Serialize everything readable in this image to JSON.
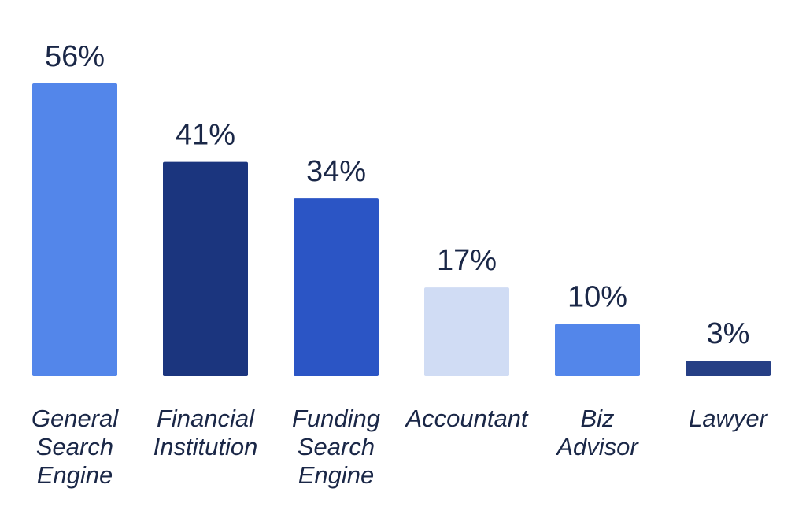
{
  "chart_data": {
    "type": "bar",
    "title": "",
    "xlabel": "",
    "ylabel": "",
    "ylim": [
      0,
      56
    ],
    "grid": false,
    "legend": "none",
    "value_suffix": "%",
    "categories": [
      [
        "General",
        "Search",
        "Engine"
      ],
      [
        "Financial",
        "Institution"
      ],
      [
        "Funding",
        "Search",
        "Engine"
      ],
      [
        "Accountant"
      ],
      [
        "Biz",
        "Advisor"
      ],
      [
        "Lawyer"
      ]
    ],
    "values": [
      56,
      41,
      34,
      17,
      10,
      3
    ],
    "value_labels": [
      "56%",
      "41%",
      "34%",
      "17%",
      "10%",
      "3%"
    ],
    "colors": [
      "#5386ea",
      "#1b357e",
      "#2b55c5",
      "#d0dcf4",
      "#5386ea",
      "#263f85"
    ]
  }
}
